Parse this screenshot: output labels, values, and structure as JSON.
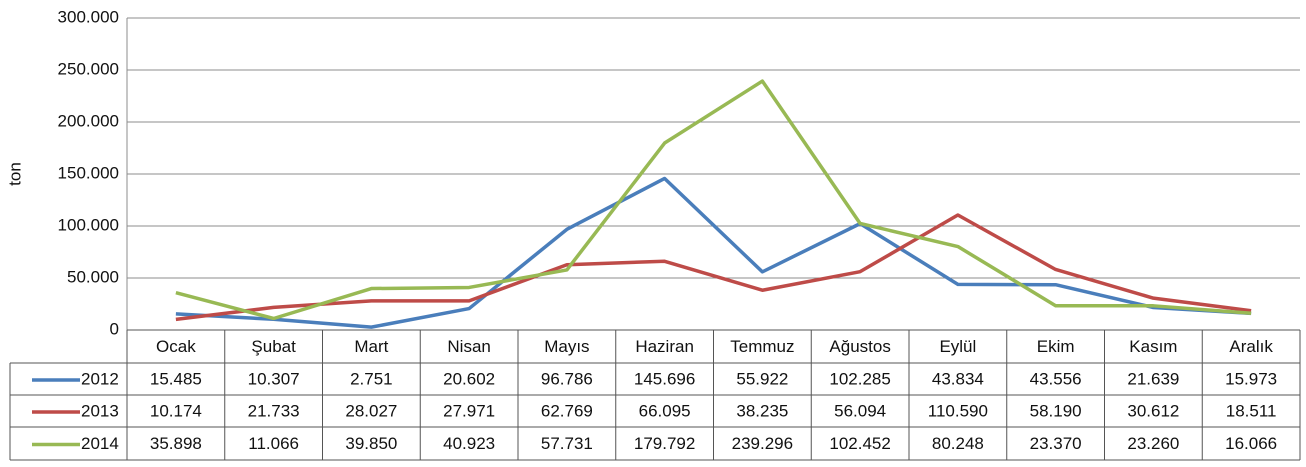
{
  "chart_data": {
    "type": "line",
    "ylabel": "ton",
    "categories": [
      "Ocak",
      "Şubat",
      "Mart",
      "Nisan",
      "Mayıs",
      "Haziran",
      "Temmuz",
      "Ağustos",
      "Eylül",
      "Ekim",
      "Kasım",
      "Aralık"
    ],
    "series": [
      {
        "name": "2012",
        "color": "#4a7ebb",
        "values": [
          15485,
          10307,
          2751,
          20602,
          96786,
          145696,
          55922,
          102285,
          43834,
          43556,
          21639,
          15973
        ],
        "value_labels": [
          "15.485",
          "10.307",
          "2.751",
          "20.602",
          "96.786",
          "145.696",
          "55.922",
          "102.285",
          "43.834",
          "43.556",
          "21.639",
          "15.973"
        ]
      },
      {
        "name": "2013",
        "color": "#be4b48",
        "values": [
          10174,
          21733,
          28027,
          27971,
          62769,
          66095,
          38235,
          56094,
          110590,
          58190,
          30612,
          18511
        ],
        "value_labels": [
          "10.174",
          "21.733",
          "28.027",
          "27.971",
          "62.769",
          "66.095",
          "38.235",
          "56.094",
          "110.590",
          "58.190",
          "30.612",
          "18.511"
        ]
      },
      {
        "name": "2014",
        "color": "#98b954",
        "values": [
          35898,
          11066,
          39850,
          40923,
          57731,
          179792,
          239296,
          102452,
          80248,
          23370,
          23260,
          16066
        ],
        "value_labels": [
          "35.898",
          "11.066",
          "39.850",
          "40.923",
          "57.731",
          "179.792",
          "239.296",
          "102.452",
          "80.248",
          "23.370",
          "23.260",
          "16.066"
        ]
      }
    ],
    "ylim": [
      0,
      300000
    ],
    "yticks": [
      0,
      {
        "value": 50000,
        "label": "50.000"
      },
      {
        "value": 100000,
        "label": "100.000"
      },
      {
        "value": 150000,
        "label": "150.000"
      },
      {
        "value": 200000,
        "label": "200.000"
      },
      {
        "value": 250000,
        "label": "250.000"
      },
      {
        "value": 300000,
        "label": "300.000"
      }
    ],
    "grid": true
  }
}
